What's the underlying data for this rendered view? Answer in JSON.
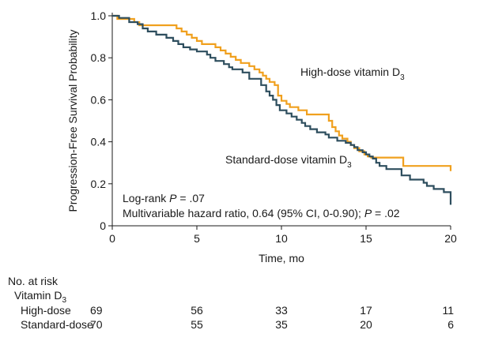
{
  "chart_data": {
    "type": "line",
    "ylabel": "Progression-Free Survival Probability",
    "xlabel": "Time, mo",
    "xlim": [
      0,
      20
    ],
    "ylim": [
      0,
      1.0
    ],
    "xticks": [
      "0",
      "5",
      "10",
      "15",
      "20"
    ],
    "yticks": [
      "0",
      "0.2",
      "0.4",
      "0.6",
      "0.8",
      "1.0"
    ],
    "grid": false,
    "series": [
      {
        "name": "High-dose vitamin D",
        "label_prefix": "High-dose vitamin D",
        "label_sub": "3",
        "color": "#f0a01e",
        "x": [
          0,
          0.3,
          1.3,
          1.6,
          3.8,
          4.1,
          4.4,
          4.7,
          5.0,
          5.3,
          6.1,
          6.4,
          6.7,
          7.0,
          7.3,
          7.6,
          8.1,
          8.4,
          8.7,
          8.9,
          9.1,
          9.3,
          9.6,
          9.8,
          10.0,
          10.3,
          10.5,
          11.0,
          11.5,
          12.8,
          13.0,
          13.2,
          13.4,
          13.6,
          13.9,
          14.1,
          14.3,
          14.6,
          14.9,
          15.1,
          15.3,
          17.2,
          19.9,
          20.0
        ],
        "y": [
          1.0,
          0.985,
          0.97,
          0.955,
          0.94,
          0.925,
          0.91,
          0.895,
          0.88,
          0.865,
          0.85,
          0.835,
          0.82,
          0.805,
          0.79,
          0.775,
          0.76,
          0.745,
          0.73,
          0.715,
          0.7,
          0.685,
          0.67,
          0.62,
          0.595,
          0.58,
          0.565,
          0.55,
          0.53,
          0.5,
          0.47,
          0.45,
          0.43,
          0.415,
          0.4,
          0.385,
          0.37,
          0.355,
          0.34,
          0.33,
          0.325,
          0.285,
          0.285,
          0.26
        ]
      },
      {
        "name": "Standard-dose vitamin D",
        "label_prefix": "Standard-dose vitamin D",
        "label_sub": "3",
        "color": "#2e4e5e",
        "x": [
          0,
          0.4,
          1.0,
          1.5,
          1.8,
          2.1,
          2.6,
          3.2,
          3.6,
          3.9,
          4.2,
          4.6,
          5.0,
          5.6,
          5.8,
          6.1,
          6.6,
          6.9,
          7.1,
          7.7,
          8.1,
          8.8,
          9.1,
          9.3,
          9.5,
          9.7,
          9.9,
          10.3,
          10.6,
          10.9,
          11.2,
          11.4,
          11.7,
          12.1,
          12.6,
          12.8,
          13.3,
          13.8,
          14.1,
          14.3,
          14.5,
          14.8,
          15.0,
          15.2,
          15.4,
          15.6,
          15.8,
          16.2,
          17.1,
          17.6,
          18.4,
          18.6,
          19.0,
          19.6,
          20.0
        ],
        "y": [
          1.0,
          0.99,
          0.97,
          0.96,
          0.94,
          0.925,
          0.91,
          0.895,
          0.88,
          0.865,
          0.85,
          0.84,
          0.83,
          0.815,
          0.8,
          0.785,
          0.77,
          0.755,
          0.745,
          0.73,
          0.7,
          0.67,
          0.64,
          0.62,
          0.6,
          0.575,
          0.55,
          0.535,
          0.52,
          0.505,
          0.49,
          0.475,
          0.46,
          0.445,
          0.435,
          0.42,
          0.405,
          0.395,
          0.385,
          0.375,
          0.36,
          0.35,
          0.34,
          0.33,
          0.32,
          0.3,
          0.285,
          0.27,
          0.24,
          0.22,
          0.205,
          0.19,
          0.175,
          0.16,
          0.1
        ]
      }
    ],
    "annotations": {
      "logrank_prefix": "Log-rank ",
      "logrank_p": "P",
      "logrank_value": " = .07",
      "hr_text": "Multivariable hazard ratio, 0.64 (95% CI, 0-0.90); ",
      "hr_p": "P",
      "hr_value": " = .02"
    }
  },
  "risk_table": {
    "title": "No. at risk",
    "group_label_prefix": "Vitamin D",
    "group_label_sub": "3",
    "rows": [
      {
        "label": "High-dose",
        "values": [
          "69",
          "56",
          "33",
          "17",
          "11"
        ]
      },
      {
        "label": "Standard-dose",
        "values": [
          "70",
          "55",
          "35",
          "20",
          "6"
        ]
      }
    ]
  }
}
